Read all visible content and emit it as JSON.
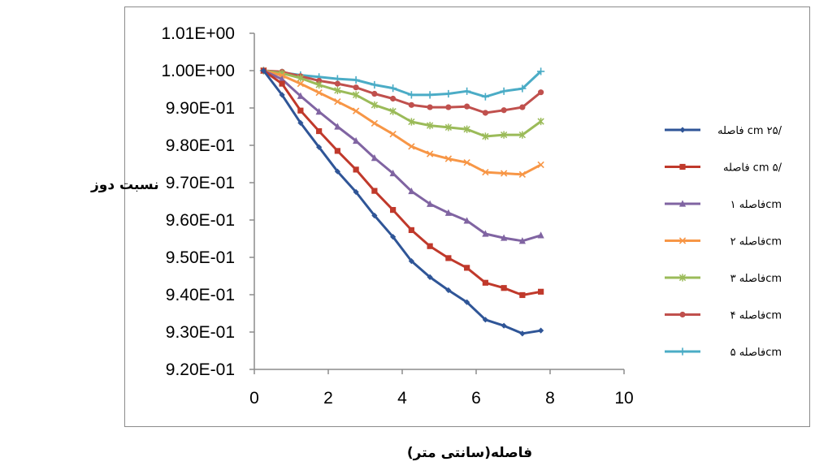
{
  "chart_data": {
    "type": "line",
    "xlabel": "فاصله(سانتی متر)",
    "ylabel": "نسبت دوز",
    "xlim": [
      0,
      10
    ],
    "xticks": [
      0,
      2,
      4,
      6,
      8,
      10
    ],
    "xtick_labels": [
      "0",
      "2",
      "4",
      "6",
      "8",
      "10"
    ],
    "ylim": [
      0.92,
      1.01
    ],
    "yticks": [
      0.92,
      0.93,
      0.94,
      0.95,
      0.96,
      0.97,
      0.98,
      0.99,
      1.0,
      1.01
    ],
    "ytick_labels": [
      "9.20E-01",
      "9.30E-01",
      "9.40E-01",
      "9.50E-01",
      "9.60E-01",
      "9.70E-01",
      "9.80E-01",
      "9.90E-01",
      "1.00E+00",
      "1.01E+00"
    ],
    "grid": false,
    "legend_position": "right",
    "x": [
      0.25,
      0.75,
      1.25,
      1.75,
      2.25,
      2.75,
      3.25,
      3.75,
      4.25,
      4.75,
      5.25,
      5.75,
      6.25,
      6.75,
      7.25,
      7.75
    ],
    "series": [
      {
        "name": "فاصله cm ۲۵/",
        "color": "#2f5597",
        "marker": "diamond",
        "values": [
          1.0,
          0.9935,
          0.986,
          0.9795,
          0.973,
          0.9675,
          0.9612,
          0.9555,
          0.949,
          0.9447,
          0.9412,
          0.938,
          0.9333,
          0.9317,
          0.9296,
          0.9304
        ]
      },
      {
        "name": "فاصله cm ۵/",
        "color": "#c0392b",
        "marker": "square",
        "values": [
          1.0,
          0.9965,
          0.9893,
          0.9838,
          0.9785,
          0.9735,
          0.9678,
          0.9627,
          0.9573,
          0.953,
          0.9498,
          0.9472,
          0.9432,
          0.9418,
          0.9399,
          0.9408
        ]
      },
      {
        "name": "فاصله ۱cm",
        "color": "#8064a2",
        "marker": "triangle",
        "values": [
          1.0,
          0.9977,
          0.9932,
          0.989,
          0.985,
          0.9812,
          0.9766,
          0.9725,
          0.9677,
          0.9643,
          0.9619,
          0.9598,
          0.9563,
          0.9552,
          0.9544,
          0.9559
        ]
      },
      {
        "name": "فاصله ۲cm",
        "color": "#f79646",
        "marker": "x",
        "values": [
          1.0,
          0.9987,
          0.9965,
          0.9941,
          0.9917,
          0.9892,
          0.9859,
          0.983,
          0.9797,
          0.9777,
          0.9764,
          0.9754,
          0.9728,
          0.9725,
          0.9722,
          0.9748
        ]
      },
      {
        "name": "فاصله ۳cm",
        "color": "#9bbb59",
        "marker": "star",
        "values": [
          1.0,
          0.9993,
          0.998,
          0.9962,
          0.9947,
          0.9935,
          0.9908,
          0.9891,
          0.9863,
          0.9853,
          0.9848,
          0.9843,
          0.9824,
          0.9828,
          0.9828,
          0.9864
        ]
      },
      {
        "name": "فاصله ۴cm",
        "color": "#c0504d",
        "marker": "circle",
        "values": [
          1.0,
          0.9997,
          0.9985,
          0.9973,
          0.9965,
          0.9955,
          0.9938,
          0.9925,
          0.9908,
          0.9902,
          0.9902,
          0.9904,
          0.9887,
          0.9894,
          0.9902,
          0.9942
        ]
      },
      {
        "name": "فاصله ۵cm",
        "color": "#4bacc6",
        "marker": "plus",
        "values": [
          1.0,
          0.9995,
          0.9988,
          0.9983,
          0.9978,
          0.9975,
          0.9962,
          0.9953,
          0.9935,
          0.9935,
          0.9938,
          0.9945,
          0.993,
          0.9945,
          0.9952,
          0.9998
        ]
      }
    ]
  }
}
